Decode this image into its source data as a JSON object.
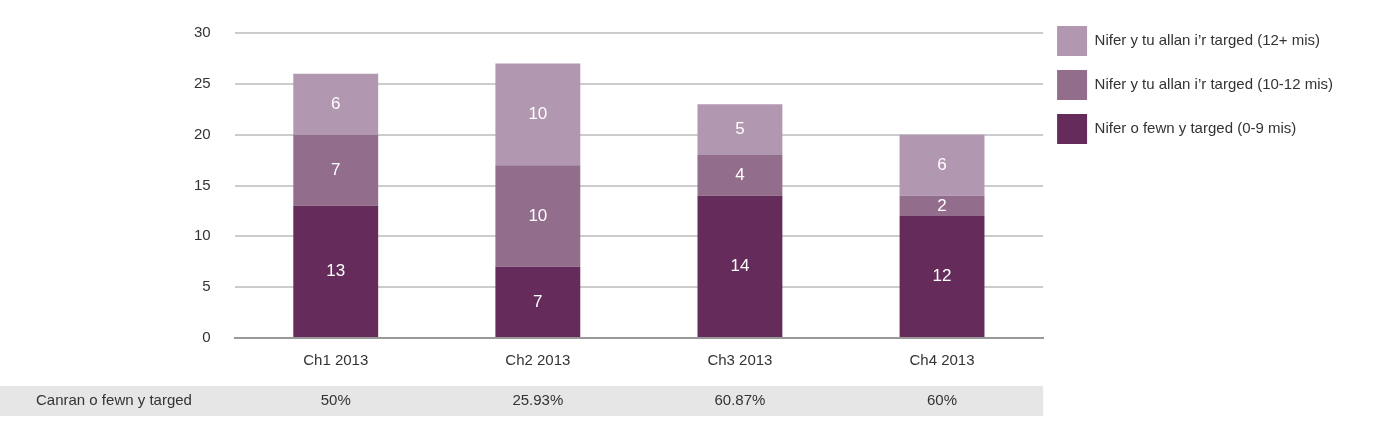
{
  "chart_data": {
    "type": "bar",
    "stacked": true,
    "categories": [
      "Ch1 2013",
      "Ch2 2013",
      "Ch3 2013",
      "Ch4 2013"
    ],
    "series": [
      {
        "name": "Nifer o fewn y targed (0-9 mis)",
        "color": "#652c5b",
        "values": [
          13,
          7,
          14,
          12
        ]
      },
      {
        "name": "Nifer y tu allan i’r targed (10-12 mis)",
        "color": "#936d8c",
        "values": [
          7,
          10,
          4,
          2
        ]
      },
      {
        "name": "Nifer y tu allan i’r targed (12+ mis)",
        "color": "#b197b0",
        "values": [
          6,
          10,
          5,
          6
        ]
      }
    ],
    "ylim": [
      0,
      30
    ],
    "yticks": [
      0,
      5,
      10,
      15,
      20,
      25,
      30
    ],
    "grid": "y",
    "legend": "top right",
    "data_labels": true,
    "annotations": [
      "Canran o fewn y targed",
      "50%",
      "25.93%",
      "60.87%",
      "60%"
    ]
  }
}
